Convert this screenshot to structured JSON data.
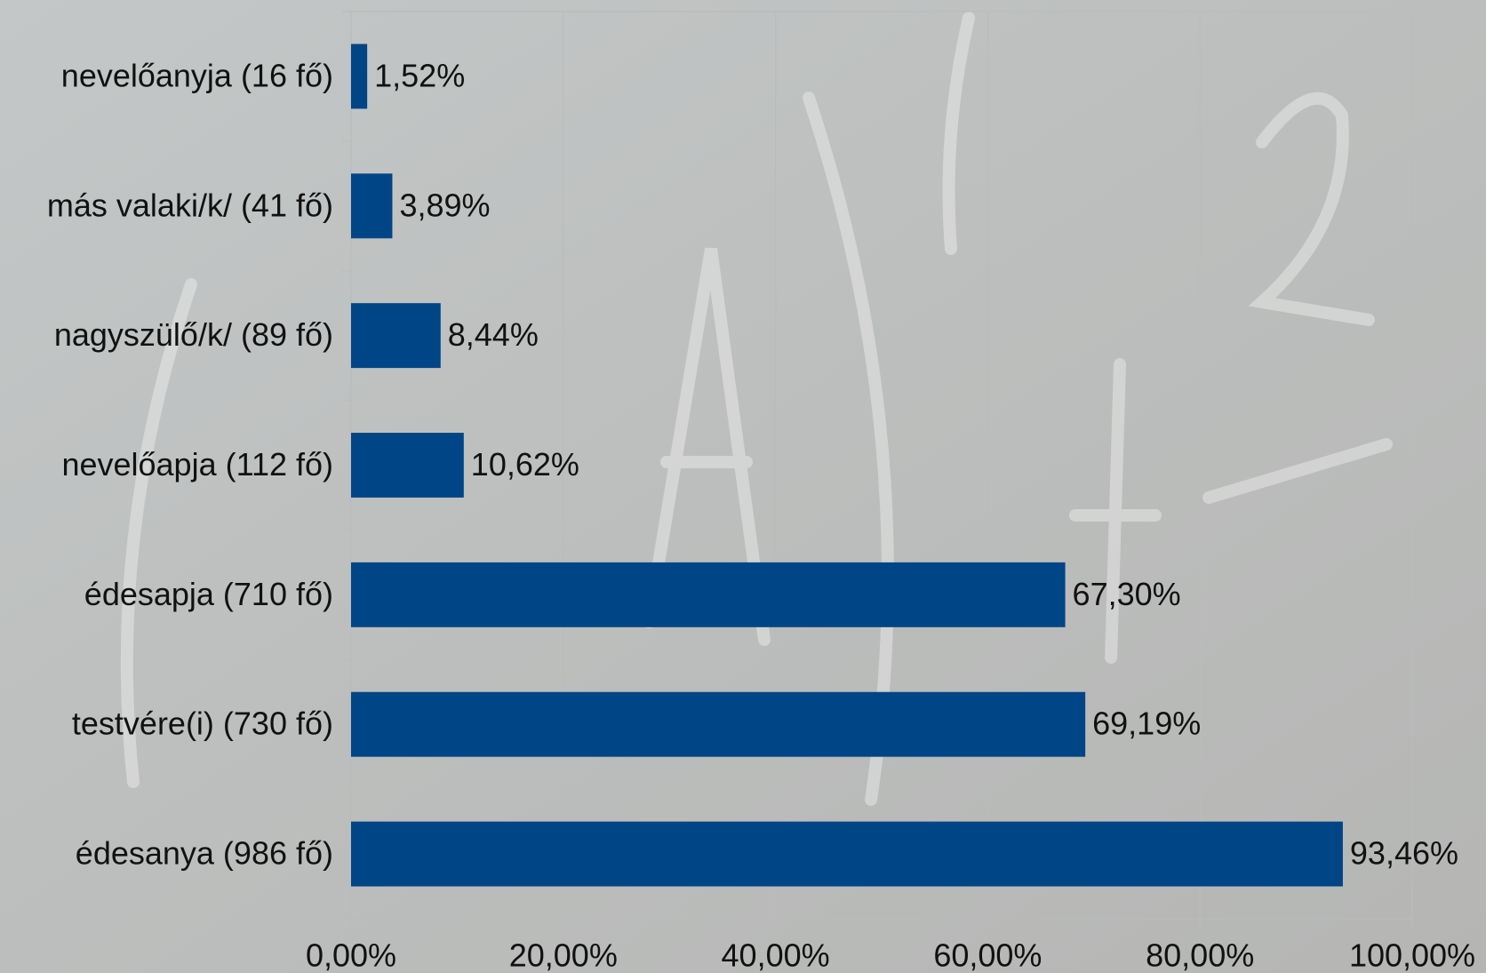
{
  "chart_data": {
    "type": "bar",
    "orientation": "horizontal",
    "categories": [
      "nevelőanyja (16 fő)",
      "más valaki/k/ (41 fő)",
      "nagyszülő/k/ (89 fő)",
      "nevelőapja (112 fő)",
      "édesapja (710 fő)",
      "testvére(i) (730 fő)",
      "édesanya (986 fő)"
    ],
    "values": [
      1.52,
      3.89,
      8.44,
      10.62,
      67.3,
      69.19,
      93.46
    ],
    "value_labels": [
      "1,52%",
      "3,89%",
      "8,44%",
      "10,62%",
      "67,30%",
      "69,19%",
      "93,46%"
    ],
    "color": "#004586",
    "xlim": [
      0,
      100
    ],
    "xticks": [
      {
        "value": 0,
        "label": "0,00%"
      },
      {
        "value": 20,
        "label": "20,00%"
      },
      {
        "value": 40,
        "label": "40,00%"
      },
      {
        "value": 60,
        "label": "60,00%"
      },
      {
        "value": 80,
        "label": "80,00%"
      },
      {
        "value": 100,
        "label": "100,00%"
      }
    ],
    "grid": true
  }
}
